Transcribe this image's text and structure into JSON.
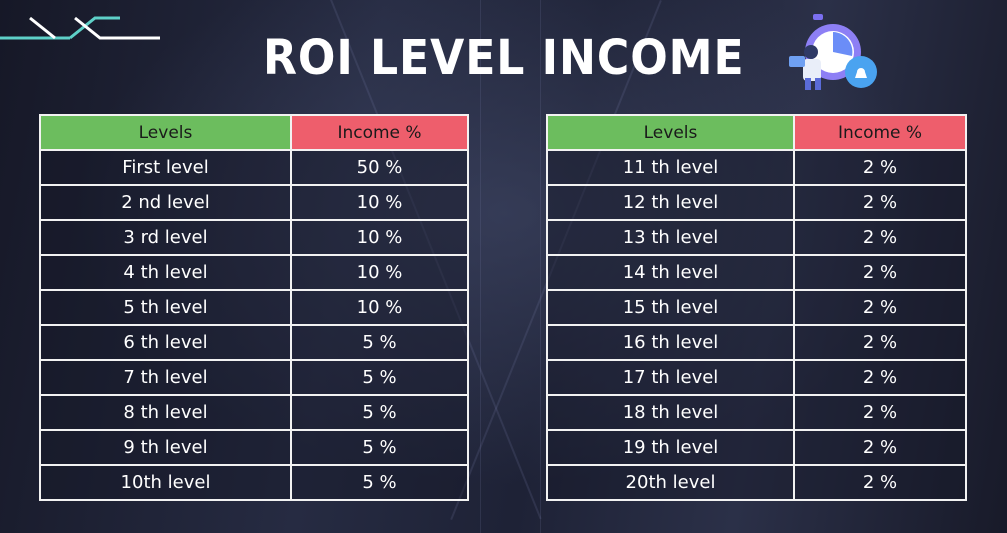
{
  "title": "ROI LEVEL INCOME",
  "headers": {
    "levels": "Levels",
    "income": "Income %"
  },
  "table_left": [
    {
      "level": "First level",
      "income": "50 %"
    },
    {
      "level": "2 nd level",
      "income": "10 %"
    },
    {
      "level": "3 rd level",
      "income": "10 %"
    },
    {
      "level": "4 th level",
      "income": "10 %"
    },
    {
      "level": "5 th level",
      "income": "10 %"
    },
    {
      "level": "6 th level",
      "income": "5 %"
    },
    {
      "level": "7 th level",
      "income": "5 %"
    },
    {
      "level": "8 th level",
      "income": "5 %"
    },
    {
      "level": "9 th level",
      "income": "5 %"
    },
    {
      "level": "10th level",
      "income": "5 %"
    }
  ],
  "table_right": [
    {
      "level": "11 th level",
      "income": "2 %"
    },
    {
      "level": "12 th level",
      "income": "2 %"
    },
    {
      "level": "13 th level",
      "income": "2 %"
    },
    {
      "level": "14 th level",
      "income": "2 %"
    },
    {
      "level": "15 th level",
      "income": "2 %"
    },
    {
      "level": "16 th level",
      "income": "2 %"
    },
    {
      "level": "17 th level",
      "income": "2 %"
    },
    {
      "level": "18 th level",
      "income": "2 %"
    },
    {
      "level": "19 th level",
      "income": "2 %"
    },
    {
      "level": "20th level",
      "income": "2 %"
    }
  ],
  "colors": {
    "levels_header": "#6cbd5e",
    "income_header": "#ee5e6c",
    "brand_accent": "#5ed0c8",
    "text": "#ffffff"
  },
  "icons": {
    "brand": "brand-logo-icon",
    "illustration": "stopwatch-person-illustration-icon"
  }
}
